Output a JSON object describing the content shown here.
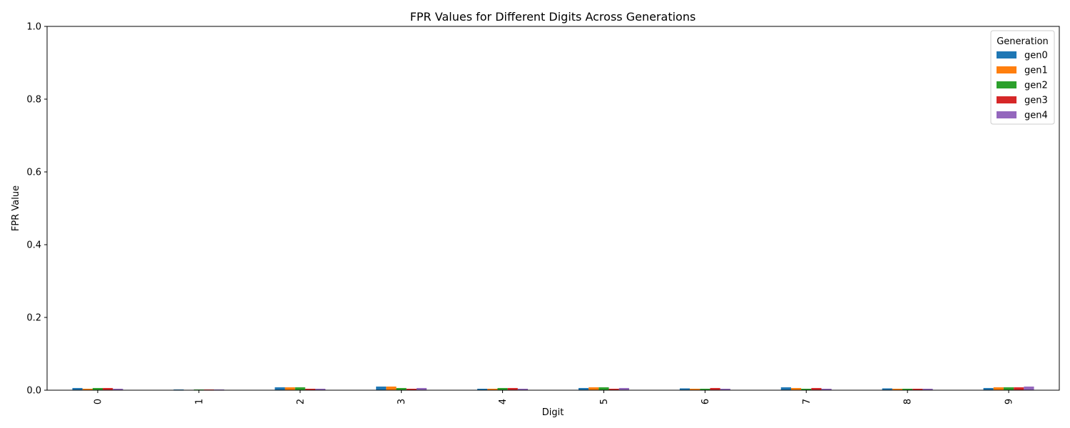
{
  "chart_data": {
    "type": "bar",
    "title": "FPR Values for Different Digits Across Generations",
    "xlabel": "Digit",
    "ylabel": "FPR Value",
    "categories": [
      "0",
      "1",
      "2",
      "3",
      "4",
      "5",
      "6",
      "7",
      "8",
      "9"
    ],
    "ylim": [
      0,
      1.0
    ],
    "yticks": [
      "0.0",
      "0.2",
      "0.4",
      "0.6",
      "0.8",
      "1.0"
    ],
    "grid": false,
    "legend": {
      "title": "Generation",
      "placement": "top-right"
    },
    "series": [
      {
        "name": "gen0",
        "color": "#1f77b4",
        "values": [
          0.006,
          0.002,
          0.008,
          0.01,
          0.004,
          0.006,
          0.005,
          0.008,
          0.005,
          0.006
        ]
      },
      {
        "name": "gen1",
        "color": "#ff7f0e",
        "values": [
          0.004,
          0.001,
          0.008,
          0.01,
          0.004,
          0.008,
          0.004,
          0.006,
          0.004,
          0.008
        ]
      },
      {
        "name": "gen2",
        "color": "#2ca02c",
        "values": [
          0.006,
          0.002,
          0.008,
          0.006,
          0.006,
          0.008,
          0.004,
          0.004,
          0.004,
          0.008
        ]
      },
      {
        "name": "gen3",
        "color": "#d62728",
        "values": [
          0.006,
          0.002,
          0.004,
          0.004,
          0.006,
          0.004,
          0.006,
          0.006,
          0.004,
          0.008
        ]
      },
      {
        "name": "gen4",
        "color": "#9467bd",
        "values": [
          0.004,
          0.002,
          0.004,
          0.006,
          0.004,
          0.006,
          0.004,
          0.004,
          0.004,
          0.01
        ]
      }
    ]
  }
}
